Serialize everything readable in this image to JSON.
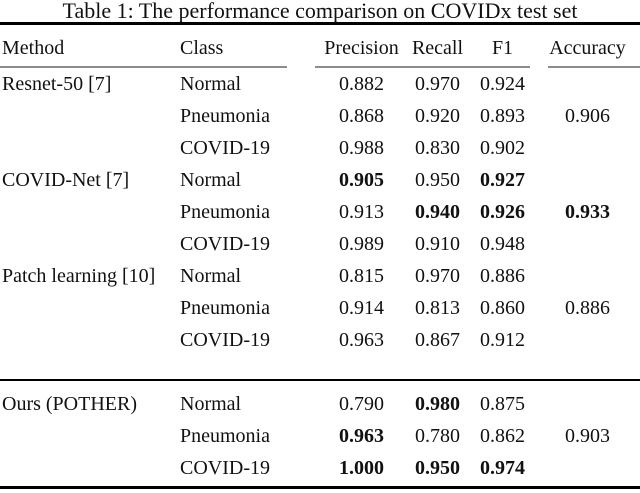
{
  "title": "Table 1: The performance comparison on COVIDx test set",
  "columns": {
    "method": "Method",
    "class": "Class",
    "precision": "Precision",
    "recall": "Recall",
    "f1": "F1",
    "accuracy": "Accuracy"
  },
  "colors": {
    "text": "#111111",
    "rule": "#000000",
    "header_rule": "#8c8c8c",
    "background": "#ffffff"
  },
  "rows": [
    {
      "method": "Resnet-50 [7]",
      "class": "Normal",
      "precision": "0.882",
      "recall": "0.970",
      "f1": "0.924",
      "accuracy": "",
      "bold": []
    },
    {
      "method": "",
      "class": "Pneumonia",
      "precision": "0.868",
      "recall": "0.920",
      "f1": "0.893",
      "accuracy": "0.906",
      "bold": []
    },
    {
      "method": "",
      "class": "COVID-19",
      "precision": "0.988",
      "recall": "0.830",
      "f1": "0.902",
      "accuracy": "",
      "bold": []
    },
    {
      "method": "COVID-Net [7]",
      "class": "Normal",
      "precision": "0.905",
      "recall": "0.950",
      "f1": "0.927",
      "accuracy": "",
      "bold": [
        "precision",
        "f1"
      ]
    },
    {
      "method": "",
      "class": "Pneumonia",
      "precision": "0.913",
      "recall": "0.940",
      "f1": "0.926",
      "accuracy": "0.933",
      "bold": [
        "recall",
        "f1",
        "accuracy"
      ]
    },
    {
      "method": "",
      "class": "COVID-19",
      "precision": "0.989",
      "recall": "0.910",
      "f1": "0.948",
      "accuracy": "",
      "bold": []
    },
    {
      "method": "Patch learning [10]",
      "class": "Normal",
      "precision": "0.815",
      "recall": "0.970",
      "f1": "0.886",
      "accuracy": "",
      "bold": []
    },
    {
      "method": "",
      "class": "Pneumonia",
      "precision": "0.914",
      "recall": "0.813",
      "f1": "0.860",
      "accuracy": "0.886",
      "bold": []
    },
    {
      "method": "",
      "class": "COVID-19",
      "precision": "0.963",
      "recall": "0.867",
      "f1": "0.912",
      "accuracy": "",
      "bold": []
    },
    {
      "method": "Ours (POTHER)",
      "class": "Normal",
      "precision": "0.790",
      "recall": "0.980",
      "f1": "0.875",
      "accuracy": "",
      "bold": [
        "recall"
      ],
      "rule_before": true
    },
    {
      "method": "",
      "class": "Pneumonia",
      "precision": "0.963",
      "recall": "0.780",
      "f1": "0.862",
      "accuracy": "0.903",
      "bold": [
        "precision"
      ]
    },
    {
      "method": "",
      "class": "COVID-19",
      "precision": "1.000",
      "recall": "0.950",
      "f1": "0.974",
      "accuracy": "",
      "bold": [
        "precision",
        "recall",
        "f1"
      ]
    }
  ]
}
